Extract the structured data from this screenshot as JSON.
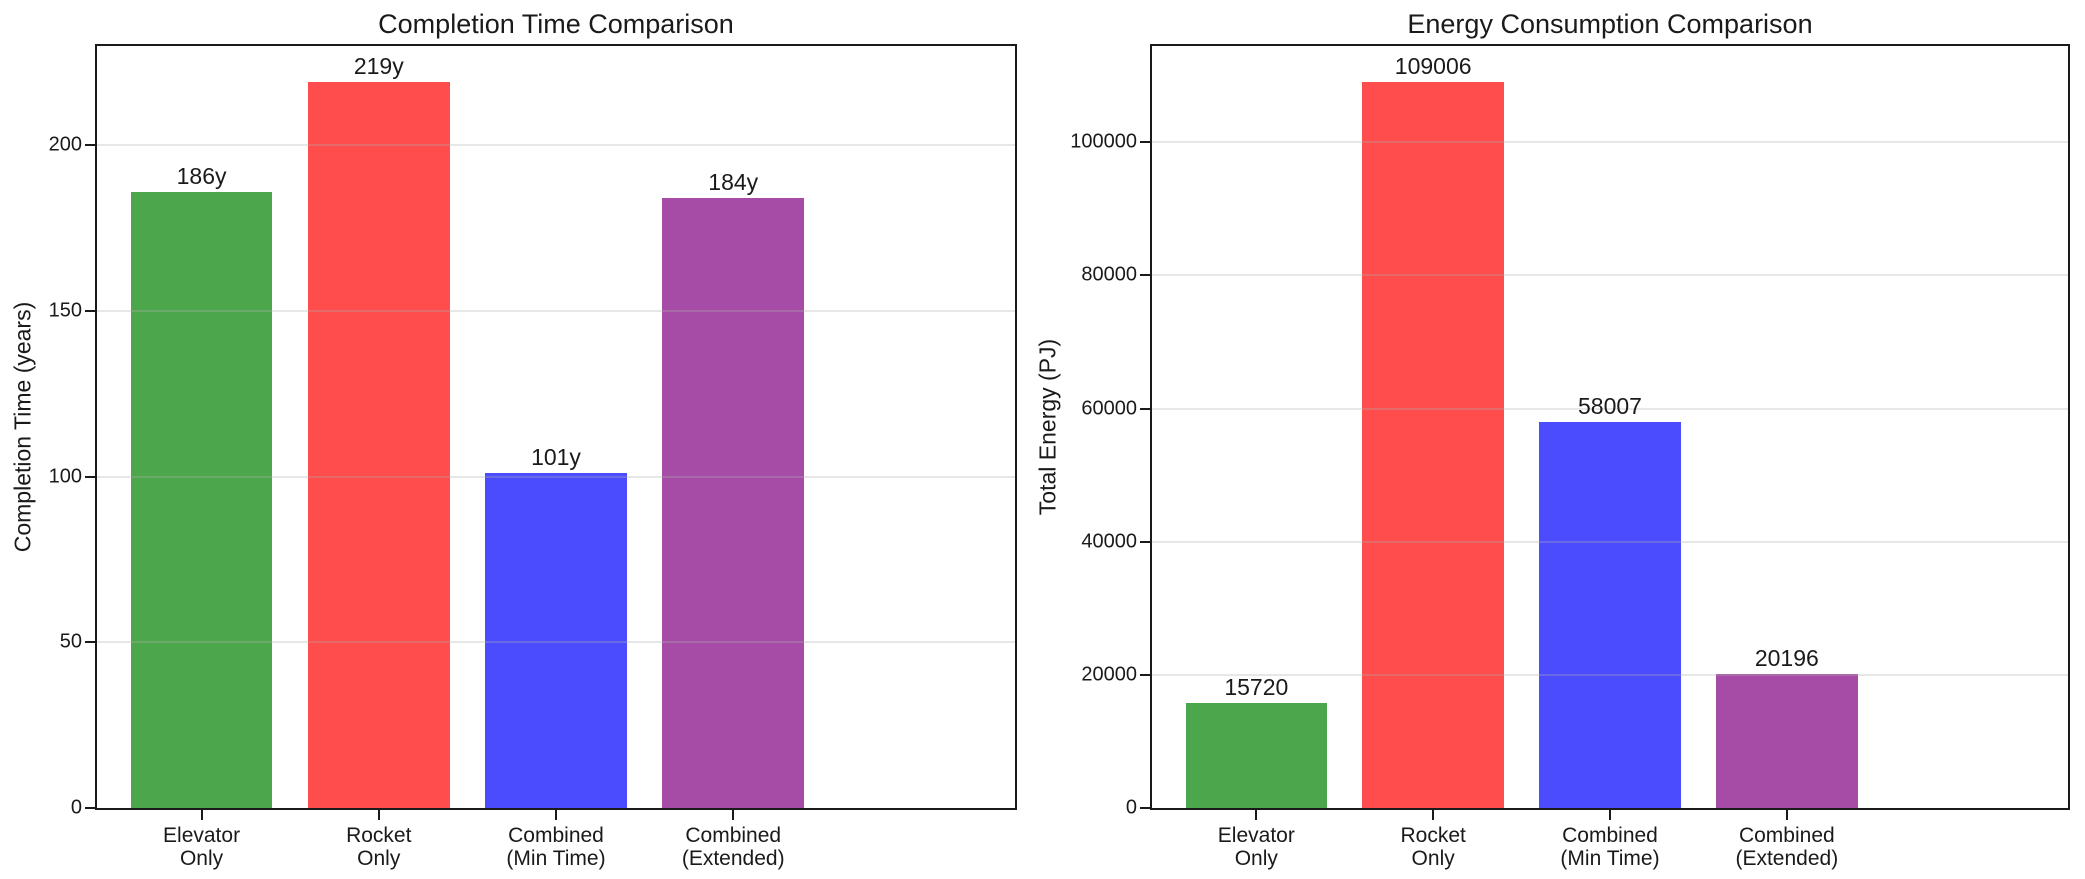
{
  "figure": {
    "background": "#ffffff",
    "text_color": "#1a1a1a",
    "spine_color": "#1a1a1a",
    "grid_color": "rgba(176,176,176,0.30)"
  },
  "chart_data": [
    {
      "type": "bar",
      "title": "Completion Time Comparison",
      "xlabel": "",
      "ylabel": "Completion Time (years)",
      "categories": [
        "Elevator\nOnly",
        "Rocket\nOnly",
        "Combined\n(Min Time)",
        "Combined\n(Extended)"
      ],
      "values": [
        186,
        219,
        101,
        184
      ],
      "bar_labels": [
        "186y",
        "219y",
        "101y",
        "184y"
      ],
      "bar_colors": [
        "#4CA64C",
        "#FF4C4C",
        "#4C4CFF",
        "#A64CA6"
      ],
      "yticks": [
        0,
        50,
        100,
        150,
        200
      ],
      "ylim": [
        0,
        230
      ],
      "grid": true,
      "legend": false
    },
    {
      "type": "bar",
      "title": "Energy Consumption Comparison",
      "xlabel": "",
      "ylabel": "Total Energy (PJ)",
      "categories": [
        "Elevator\nOnly",
        "Rocket\nOnly",
        "Combined\n(Min Time)",
        "Combined\n(Extended)"
      ],
      "values": [
        15720,
        109006,
        58007,
        20196
      ],
      "bar_labels": [
        "15720",
        "109006",
        "58007",
        "20196"
      ],
      "bar_colors": [
        "#4CA64C",
        "#FF4C4C",
        "#4C4CFF",
        "#A64CA6"
      ],
      "yticks": [
        0,
        20000,
        40000,
        60000,
        80000,
        100000
      ],
      "ylim": [
        0,
        114456
      ],
      "grid": true,
      "legend": false
    }
  ]
}
